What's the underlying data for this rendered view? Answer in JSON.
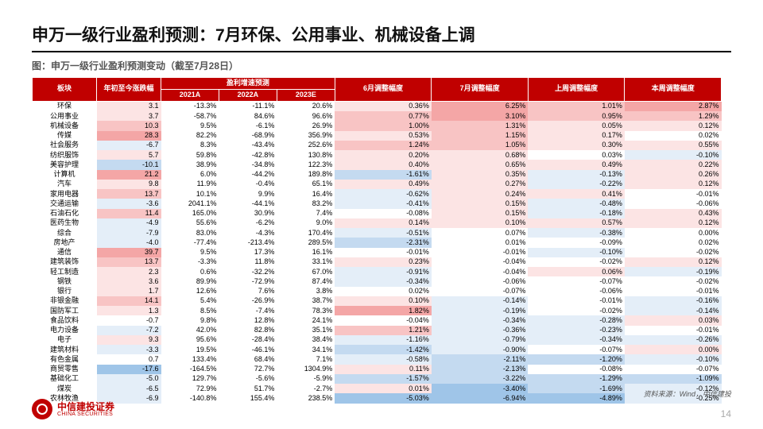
{
  "title": "申万一级行业盈利预测：7月环保、公用事业、机械设备上调",
  "subtitle": "图：申万一级行业盈利预测变动（截至7月28日）",
  "source": "资料来源：Wind，中信建投",
  "pagenum": "14",
  "logo_cn": "中信建投证券",
  "logo_en": "CHINA SECURITIES",
  "headers": {
    "sector": "板块",
    "ytd": "年初至今涨跌幅",
    "growth_group": "盈利增速预测",
    "y2021": "2021A",
    "y2022": "2022A",
    "y2023": "2023E",
    "june": "6月调整幅度",
    "july": "7月调整幅度",
    "lastwk": "上周调整幅度",
    "thiswk": "本周调整幅度"
  },
  "colors": {
    "header_bg": "#c00000",
    "pos_strong": "#f4a6a6",
    "pos_mid": "#f8c4c4",
    "pos_light": "#fce4e4",
    "neg_strong": "#9fc5e8",
    "neg_mid": "#c4daf0",
    "neg_light": "#e4eef8",
    "neutral": "#ffffff"
  },
  "col_widths": [
    "60",
    "60",
    "54",
    "54",
    "54",
    "90",
    "90",
    "90",
    "90"
  ],
  "rows": [
    {
      "sector": "环保",
      "ytd": "3.1",
      "y21": "-13.3%",
      "y22": "-11.1%",
      "y23": "20.6%",
      "jun": "0.36%",
      "jul": "6.25%",
      "lw": "1.01%",
      "tw": "2.87%",
      "c_ytd": "pos_light",
      "c_jun": "pos_light",
      "c_jul": "pos_strong",
      "c_lw": "pos_mid",
      "c_tw": "pos_strong"
    },
    {
      "sector": "公用事业",
      "ytd": "3.7",
      "y21": "-58.7%",
      "y22": "84.6%",
      "y23": "96.6%",
      "jun": "0.77%",
      "jul": "3.10%",
      "lw": "0.95%",
      "tw": "1.29%",
      "c_ytd": "pos_light",
      "c_jun": "pos_mid",
      "c_jul": "pos_strong",
      "c_lw": "pos_mid",
      "c_tw": "pos_mid"
    },
    {
      "sector": "机械设备",
      "ytd": "10.3",
      "y21": "9.5%",
      "y22": "-6.1%",
      "y23": "26.9%",
      "jun": "1.00%",
      "jul": "1.31%",
      "lw": "0.05%",
      "tw": "0.12%",
      "c_ytd": "pos_mid",
      "c_jun": "pos_mid",
      "c_jul": "pos_mid",
      "c_lw": "pos_light",
      "c_tw": "pos_light"
    },
    {
      "sector": "传媒",
      "ytd": "28.3",
      "y21": "82.2%",
      "y22": "-68.9%",
      "y23": "356.9%",
      "jun": "0.53%",
      "jul": "1.15%",
      "lw": "0.17%",
      "tw": "0.02%",
      "c_ytd": "pos_strong",
      "c_jun": "pos_light",
      "c_jul": "pos_mid",
      "c_lw": "pos_light",
      "c_tw": "neutral"
    },
    {
      "sector": "社会服务",
      "ytd": "-6.7",
      "y21": "8.3%",
      "y22": "-43.4%",
      "y23": "252.6%",
      "jun": "1.24%",
      "jul": "1.05%",
      "lw": "0.30%",
      "tw": "0.55%",
      "c_ytd": "neg_light",
      "c_jun": "pos_mid",
      "c_jul": "pos_mid",
      "c_lw": "pos_light",
      "c_tw": "pos_light"
    },
    {
      "sector": "纺织服饰",
      "ytd": "5.7",
      "y21": "59.8%",
      "y22": "-42.8%",
      "y23": "130.8%",
      "jun": "0.20%",
      "jul": "0.68%",
      "lw": "0.03%",
      "tw": "-0.10%",
      "c_ytd": "pos_light",
      "c_jun": "pos_light",
      "c_jul": "pos_light",
      "c_lw": "neutral",
      "c_tw": "neg_light"
    },
    {
      "sector": "美容护理",
      "ytd": "-10.1",
      "y21": "38.9%",
      "y22": "-34.8%",
      "y23": "122.3%",
      "jun": "0.40%",
      "jul": "0.65%",
      "lw": "0.49%",
      "tw": "0.22%",
      "c_ytd": "neg_mid",
      "c_jun": "pos_light",
      "c_jul": "pos_light",
      "c_lw": "pos_light",
      "c_tw": "pos_light"
    },
    {
      "sector": "计算机",
      "ytd": "21.2",
      "y21": "6.0%",
      "y22": "-44.2%",
      "y23": "189.8%",
      "jun": "-1.61%",
      "jul": "0.35%",
      "lw": "-0.13%",
      "tw": "0.26%",
      "c_ytd": "pos_strong",
      "c_jun": "neg_mid",
      "c_jul": "pos_light",
      "c_lw": "neg_light",
      "c_tw": "pos_light"
    },
    {
      "sector": "汽车",
      "ytd": "9.8",
      "y21": "11.9%",
      "y22": "-0.4%",
      "y23": "65.1%",
      "jun": "0.49%",
      "jul": "0.27%",
      "lw": "-0.22%",
      "tw": "0.12%",
      "c_ytd": "pos_light",
      "c_jun": "pos_light",
      "c_jul": "pos_light",
      "c_lw": "neg_light",
      "c_tw": "pos_light"
    },
    {
      "sector": "家用电器",
      "ytd": "13.7",
      "y21": "10.1%",
      "y22": "9.9%",
      "y23": "16.4%",
      "jun": "-0.62%",
      "jul": "0.24%",
      "lw": "0.41%",
      "tw": "-0.01%",
      "c_ytd": "pos_mid",
      "c_jun": "neg_light",
      "c_jul": "pos_light",
      "c_lw": "pos_light",
      "c_tw": "neutral"
    },
    {
      "sector": "交通运输",
      "ytd": "-3.6",
      "y21": "2041.1%",
      "y22": "-44.1%",
      "y23": "83.2%",
      "jun": "-0.41%",
      "jul": "0.15%",
      "lw": "-0.48%",
      "tw": "-0.06%",
      "c_ytd": "neg_light",
      "c_jun": "neg_light",
      "c_jul": "pos_light",
      "c_lw": "neg_light",
      "c_tw": "neutral"
    },
    {
      "sector": "石油石化",
      "ytd": "11.4",
      "y21": "165.0%",
      "y22": "30.9%",
      "y23": "7.4%",
      "jun": "-0.08%",
      "jul": "0.15%",
      "lw": "-0.18%",
      "tw": "0.43%",
      "c_ytd": "pos_mid",
      "c_jun": "neutral",
      "c_jul": "pos_light",
      "c_lw": "neg_light",
      "c_tw": "pos_light"
    },
    {
      "sector": "医药生物",
      "ytd": "-4.9",
      "y21": "55.6%",
      "y22": "-6.2%",
      "y23": "9.0%",
      "jun": "0.14%",
      "jul": "0.10%",
      "lw": "0.57%",
      "tw": "0.12%",
      "c_ytd": "neg_light",
      "c_jun": "pos_light",
      "c_jul": "pos_light",
      "c_lw": "pos_light",
      "c_tw": "pos_light"
    },
    {
      "sector": "综合",
      "ytd": "-7.9",
      "y21": "83.0%",
      "y22": "-4.3%",
      "y23": "170.4%",
      "jun": "-0.51%",
      "jul": "0.07%",
      "lw": "-0.38%",
      "tw": "0.00%",
      "c_ytd": "neg_light",
      "c_jun": "neg_light",
      "c_jul": "neutral",
      "c_lw": "neg_light",
      "c_tw": "neutral"
    },
    {
      "sector": "房地产",
      "ytd": "-4.0",
      "y21": "-77.4%",
      "y22": "-213.4%",
      "y23": "289.5%",
      "jun": "-2.31%",
      "jul": "0.01%",
      "lw": "-0.09%",
      "tw": "0.02%",
      "c_ytd": "neg_light",
      "c_jun": "neg_mid",
      "c_jul": "neutral",
      "c_lw": "neutral",
      "c_tw": "neutral"
    },
    {
      "sector": "通信",
      "ytd": "39.7",
      "y21": "9.5%",
      "y22": "17.3%",
      "y23": "16.1%",
      "jun": "-0.01%",
      "jul": "-0.01%",
      "lw": "-0.10%",
      "tw": "-0.02%",
      "c_ytd": "pos_strong",
      "c_jun": "neutral",
      "c_jul": "neutral",
      "c_lw": "neg_light",
      "c_tw": "neutral"
    },
    {
      "sector": "建筑装饰",
      "ytd": "13.7",
      "y21": "-3.3%",
      "y22": "11.8%",
      "y23": "33.1%",
      "jun": "0.23%",
      "jul": "-0.04%",
      "lw": "-0.02%",
      "tw": "0.12%",
      "c_ytd": "pos_mid",
      "c_jun": "pos_light",
      "c_jul": "neutral",
      "c_lw": "neutral",
      "c_tw": "pos_light"
    },
    {
      "sector": "轻工制造",
      "ytd": "2.3",
      "y21": "0.6%",
      "y22": "-32.2%",
      "y23": "67.0%",
      "jun": "-0.91%",
      "jul": "-0.04%",
      "lw": "0.06%",
      "tw": "-0.19%",
      "c_ytd": "pos_light",
      "c_jun": "neg_light",
      "c_jul": "neutral",
      "c_lw": "pos_light",
      "c_tw": "neg_light"
    },
    {
      "sector": "钢铁",
      "ytd": "3.6",
      "y21": "89.9%",
      "y22": "-72.9%",
      "y23": "87.4%",
      "jun": "-0.34%",
      "jul": "-0.06%",
      "lw": "-0.07%",
      "tw": "-0.02%",
      "c_ytd": "pos_light",
      "c_jun": "neg_light",
      "c_jul": "neutral",
      "c_lw": "neutral",
      "c_tw": "neutral"
    },
    {
      "sector": "银行",
      "ytd": "1.7",
      "y21": "12.6%",
      "y22": "7.6%",
      "y23": "3.8%",
      "jun": "0.02%",
      "jul": "-0.07%",
      "lw": "-0.06%",
      "tw": "-0.01%",
      "c_ytd": "pos_light",
      "c_jun": "neutral",
      "c_jul": "neutral",
      "c_lw": "neutral",
      "c_tw": "neutral"
    },
    {
      "sector": "非银金融",
      "ytd": "14.1",
      "y21": "5.4%",
      "y22": "-26.9%",
      "y23": "38.7%",
      "jun": "0.10%",
      "jul": "-0.14%",
      "lw": "-0.01%",
      "tw": "-0.16%",
      "c_ytd": "pos_mid",
      "c_jun": "pos_light",
      "c_jul": "neg_light",
      "c_lw": "neutral",
      "c_tw": "neg_light"
    },
    {
      "sector": "国防军工",
      "ytd": "1.3",
      "y21": "8.5%",
      "y22": "-7.4%",
      "y23": "78.3%",
      "jun": "1.82%",
      "jul": "-0.19%",
      "lw": "-0.02%",
      "tw": "-0.14%",
      "c_ytd": "pos_light",
      "c_jun": "pos_strong",
      "c_jul": "neg_light",
      "c_lw": "neutral",
      "c_tw": "neg_light"
    },
    {
      "sector": "食品饮料",
      "ytd": "-0.7",
      "y21": "9.8%",
      "y22": "12.8%",
      "y23": "24.1%",
      "jun": "-0.04%",
      "jul": "-0.34%",
      "lw": "-0.28%",
      "tw": "0.03%",
      "c_ytd": "neutral",
      "c_jun": "neutral",
      "c_jul": "neg_light",
      "c_lw": "neg_light",
      "c_tw": "pos_light"
    },
    {
      "sector": "电力设备",
      "ytd": "-7.2",
      "y21": "42.0%",
      "y22": "82.8%",
      "y23": "35.1%",
      "jun": "1.21%",
      "jul": "-0.36%",
      "lw": "-0.23%",
      "tw": "-0.01%",
      "c_ytd": "neg_light",
      "c_jun": "pos_mid",
      "c_jul": "neg_light",
      "c_lw": "neg_light",
      "c_tw": "neutral"
    },
    {
      "sector": "电子",
      "ytd": "9.3",
      "y21": "95.6%",
      "y22": "-28.4%",
      "y23": "38.4%",
      "jun": "-1.16%",
      "jul": "-0.79%",
      "lw": "-0.34%",
      "tw": "-0.26%",
      "c_ytd": "pos_light",
      "c_jun": "neg_light",
      "c_jul": "neg_light",
      "c_lw": "neg_light",
      "c_tw": "neg_light"
    },
    {
      "sector": "建筑材料",
      "ytd": "-3.3",
      "y21": "19.5%",
      "y22": "-46.1%",
      "y23": "34.1%",
      "jun": "-1.42%",
      "jul": "-0.90%",
      "lw": "-0.07%",
      "tw": "0.00%",
      "c_ytd": "neg_light",
      "c_jun": "neg_mid",
      "c_jul": "neg_light",
      "c_lw": "neutral",
      "c_tw": "pos_light"
    },
    {
      "sector": "有色金属",
      "ytd": "0.7",
      "y21": "133.4%",
      "y22": "68.4%",
      "y23": "7.1%",
      "jun": "-0.58%",
      "jul": "-2.11%",
      "lw": "-1.20%",
      "tw": "-0.10%",
      "c_ytd": "neutral",
      "c_jun": "neg_light",
      "c_jul": "neg_mid",
      "c_lw": "neg_mid",
      "c_tw": "neg_light"
    },
    {
      "sector": "商贸零售",
      "ytd": "-17.6",
      "y21": "-164.5%",
      "y22": "72.7%",
      "y23": "1304.9%",
      "jun": "0.11%",
      "jul": "-2.13%",
      "lw": "-0.08%",
      "tw": "-0.07%",
      "c_ytd": "neg_strong",
      "c_jun": "pos_light",
      "c_jul": "neg_mid",
      "c_lw": "neutral",
      "c_tw": "neutral"
    },
    {
      "sector": "基础化工",
      "ytd": "-5.0",
      "y21": "129.7%",
      "y22": "-5.6%",
      "y23": "-5.9%",
      "jun": "-1.57%",
      "jul": "-3.22%",
      "lw": "-1.29%",
      "tw": "-1.09%",
      "c_ytd": "neg_light",
      "c_jun": "neg_mid",
      "c_jul": "neg_mid",
      "c_lw": "neg_mid",
      "c_tw": "neg_mid"
    },
    {
      "sector": "煤炭",
      "ytd": "-6.5",
      "y21": "72.9%",
      "y22": "51.7%",
      "y23": "-2.7%",
      "jun": "0.01%",
      "jul": "-3.40%",
      "lw": "-1.69%",
      "tw": "-0.12%",
      "c_ytd": "neg_light",
      "c_jun": "pos_light",
      "c_jul": "neg_strong",
      "c_lw": "neg_mid",
      "c_tw": "neg_light"
    },
    {
      "sector": "农林牧渔",
      "ytd": "-6.9",
      "y21": "-140.8%",
      "y22": "155.4%",
      "y23": "238.5%",
      "jun": "-5.03%",
      "jul": "-6.94%",
      "lw": "-4.89%",
      "tw": "-0.25%",
      "c_ytd": "neg_light",
      "c_jun": "neg_strong",
      "c_jul": "neg_strong",
      "c_lw": "neg_strong",
      "c_tw": "neg_light"
    }
  ]
}
